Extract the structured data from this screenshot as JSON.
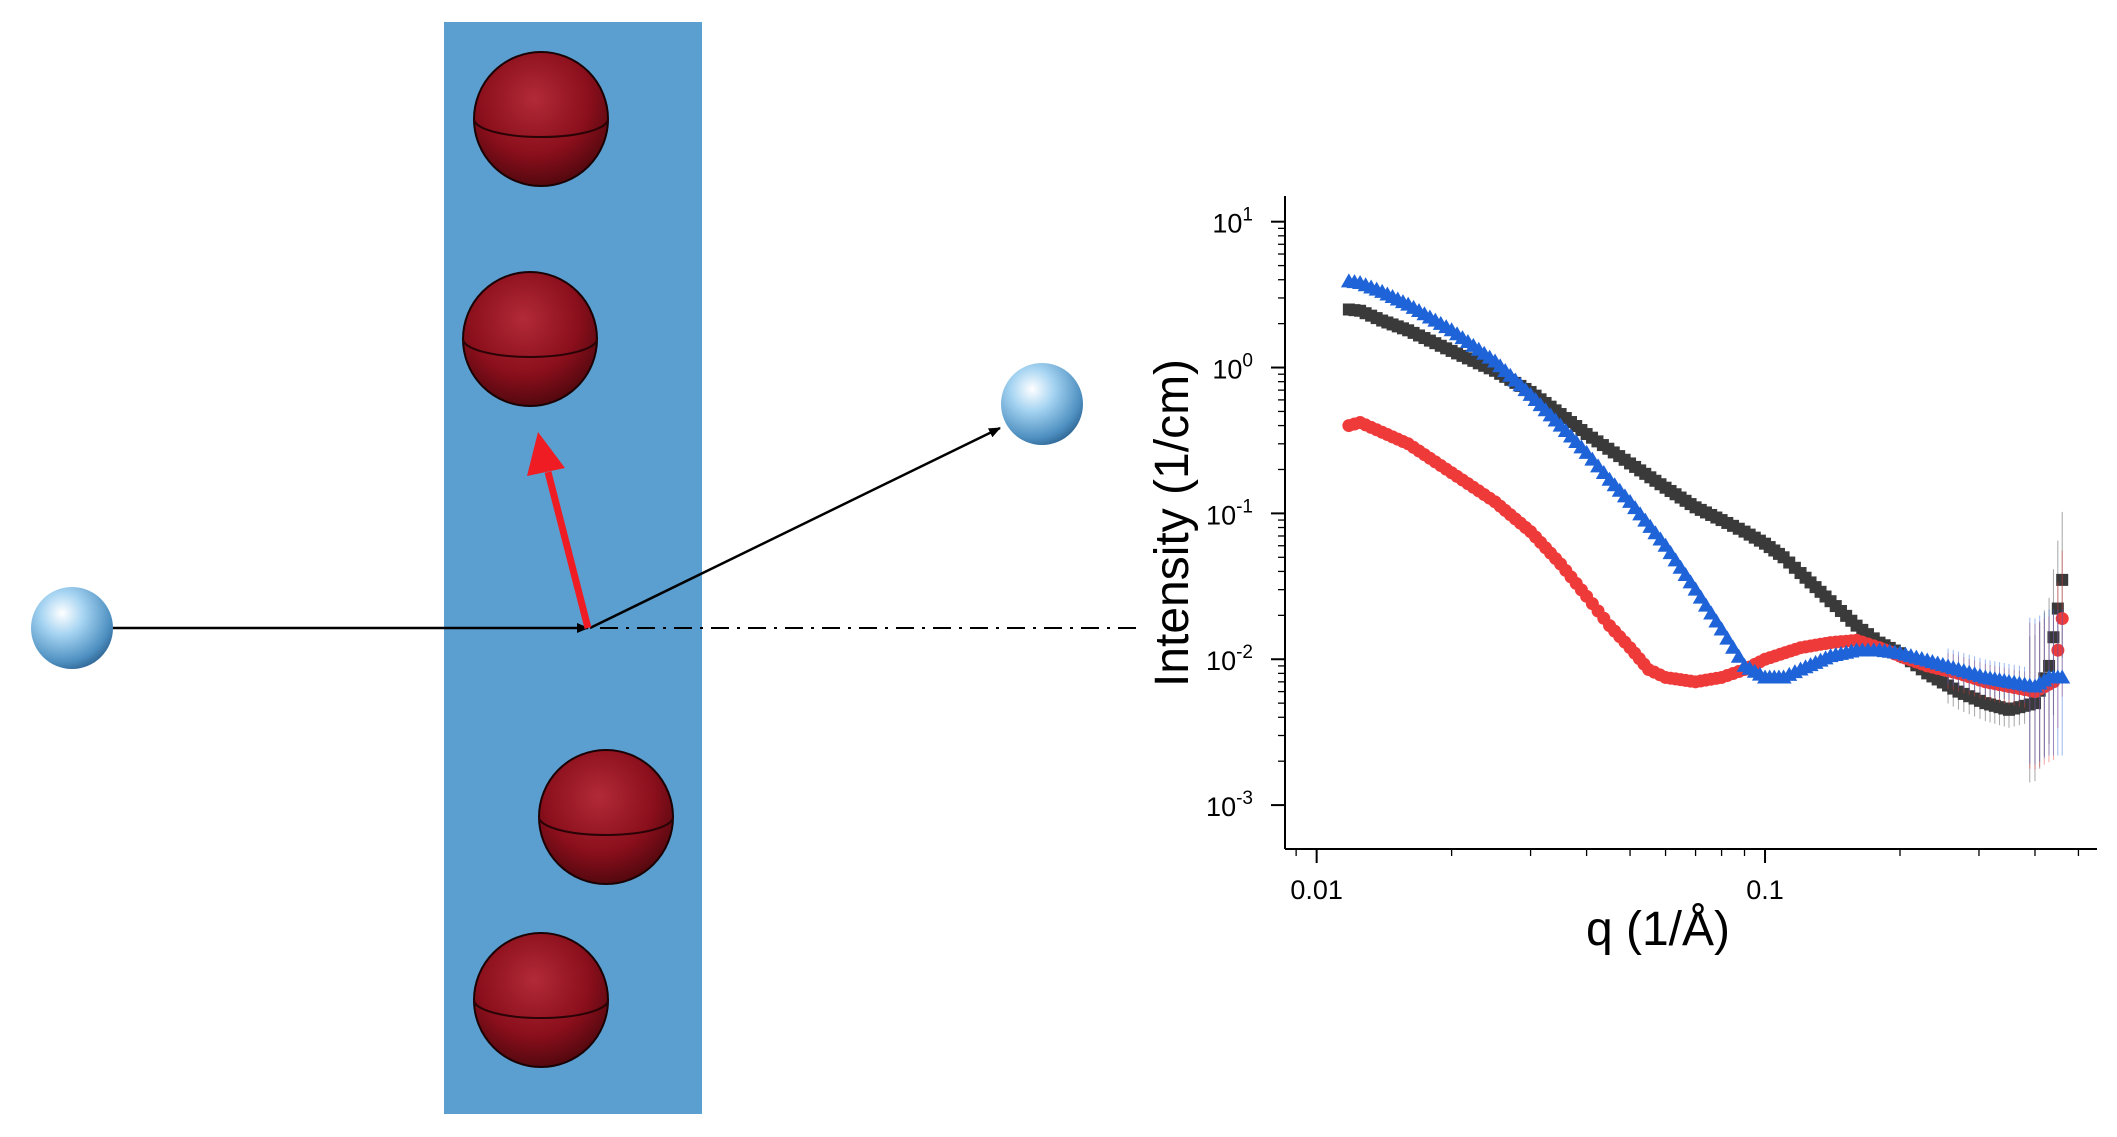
{
  "colors": {
    "sample_slab": "#5a9fd0",
    "particle": "#8b0f1c",
    "neutron": "#5f9ccc",
    "momentum_transfer": "#ef1c24",
    "beam_arrow": "#000000",
    "series_black": "#3a3a3a",
    "series_red": "#ef3a3a",
    "series_blue": "#1f63d8"
  },
  "chart_data": {
    "type": "scatter",
    "xlabel": "q  (1/Å)",
    "ylabel": "Intensity  (1/cm)",
    "x_scale": "log",
    "y_scale": "log",
    "xlim": [
      0.0085,
      0.55
    ],
    "ylim": [
      0.0005,
      15
    ],
    "x_ticks": [
      {
        "value": 0.01,
        "label": "0.01"
      },
      {
        "value": 0.1,
        "label": "0.1"
      }
    ],
    "y_ticks": [
      {
        "value": 10,
        "base": "10",
        "exp": "1"
      },
      {
        "value": 1,
        "base": "10",
        "exp": "0"
      },
      {
        "value": 0.1,
        "base": "10",
        "exp": "-1"
      },
      {
        "value": 0.01,
        "base": "10",
        "exp": "-2"
      },
      {
        "value": 0.001,
        "base": "10",
        "exp": "-3"
      }
    ],
    "grid": false,
    "legend": "none",
    "series": [
      {
        "marker": "square",
        "color": "#3a3a3a",
        "points": [
          [
            0.0118,
            2.5
          ],
          [
            0.0125,
            2.45
          ],
          [
            0.014,
            2.1
          ],
          [
            0.016,
            1.8
          ],
          [
            0.02,
            1.3
          ],
          [
            0.025,
            0.95
          ],
          [
            0.03,
            0.68
          ],
          [
            0.035,
            0.48
          ],
          [
            0.04,
            0.35
          ],
          [
            0.05,
            0.22
          ],
          [
            0.06,
            0.15
          ],
          [
            0.07,
            0.11
          ],
          [
            0.08,
            0.09
          ],
          [
            0.09,
            0.075
          ],
          [
            0.1,
            0.062
          ],
          [
            0.11,
            0.05
          ],
          [
            0.12,
            0.039
          ],
          [
            0.14,
            0.025
          ],
          [
            0.16,
            0.017
          ],
          [
            0.18,
            0.013
          ],
          [
            0.2,
            0.011
          ],
          [
            0.23,
            0.008
          ],
          [
            0.27,
            0.006
          ],
          [
            0.31,
            0.005
          ],
          [
            0.35,
            0.0045
          ],
          [
            0.4,
            0.005
          ],
          [
            0.43,
            0.009
          ],
          [
            0.46,
            0.035
          ]
        ]
      },
      {
        "marker": "circle",
        "color": "#ef3a3a",
        "points": [
          [
            0.0118,
            0.4
          ],
          [
            0.0125,
            0.42
          ],
          [
            0.014,
            0.36
          ],
          [
            0.016,
            0.3
          ],
          [
            0.02,
            0.19
          ],
          [
            0.025,
            0.12
          ],
          [
            0.03,
            0.075
          ],
          [
            0.035,
            0.045
          ],
          [
            0.04,
            0.027
          ],
          [
            0.045,
            0.017
          ],
          [
            0.05,
            0.012
          ],
          [
            0.055,
            0.0085
          ],
          [
            0.06,
            0.0075
          ],
          [
            0.07,
            0.007
          ],
          [
            0.08,
            0.0075
          ],
          [
            0.09,
            0.0085
          ],
          [
            0.1,
            0.01
          ],
          [
            0.12,
            0.012
          ],
          [
            0.14,
            0.013
          ],
          [
            0.16,
            0.0135
          ],
          [
            0.18,
            0.012
          ],
          [
            0.2,
            0.0105
          ],
          [
            0.23,
            0.009
          ],
          [
            0.27,
            0.008
          ],
          [
            0.31,
            0.007
          ],
          [
            0.35,
            0.0065
          ],
          [
            0.4,
            0.006
          ],
          [
            0.44,
            0.007
          ],
          [
            0.46,
            0.019
          ]
        ]
      },
      {
        "marker": "triangle",
        "color": "#1f63d8",
        "points": [
          [
            0.0118,
            3.9
          ],
          [
            0.0125,
            3.8
          ],
          [
            0.014,
            3.3
          ],
          [
            0.016,
            2.7
          ],
          [
            0.02,
            1.8
          ],
          [
            0.025,
            1.1
          ],
          [
            0.03,
            0.65
          ],
          [
            0.035,
            0.4
          ],
          [
            0.04,
            0.26
          ],
          [
            0.045,
            0.17
          ],
          [
            0.05,
            0.12
          ],
          [
            0.06,
            0.06
          ],
          [
            0.07,
            0.03
          ],
          [
            0.08,
            0.016
          ],
          [
            0.09,
            0.009
          ],
          [
            0.1,
            0.0075
          ],
          [
            0.11,
            0.0075
          ],
          [
            0.12,
            0.0085
          ],
          [
            0.14,
            0.0105
          ],
          [
            0.16,
            0.0115
          ],
          [
            0.18,
            0.0115
          ],
          [
            0.2,
            0.011
          ],
          [
            0.23,
            0.0098
          ],
          [
            0.27,
            0.0085
          ],
          [
            0.31,
            0.0075
          ],
          [
            0.35,
            0.007
          ],
          [
            0.4,
            0.0065
          ],
          [
            0.43,
            0.0075
          ],
          [
            0.46,
            0.0075
          ]
        ]
      }
    ]
  }
}
